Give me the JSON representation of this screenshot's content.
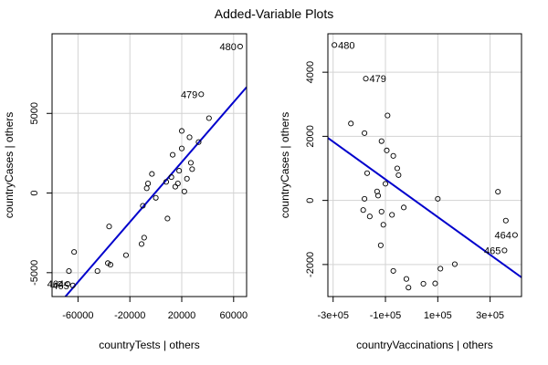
{
  "title": "Added-Variable Plots",
  "chart_data": [
    {
      "type": "scatter",
      "xlabel": "countryTests | others",
      "ylabel": "countryCases  | others",
      "xlim": [
        -80000,
        70000
      ],
      "ylim": [
        -6500,
        10000
      ],
      "x_ticks": [
        -60000,
        -20000,
        20000,
        60000
      ],
      "x_tick_labels": [
        "-60000",
        "-20000",
        "20000",
        "60000"
      ],
      "y_ticks": [
        -5000,
        0,
        5000
      ],
      "y_tick_labels": [
        "-5000",
        "0",
        "5000"
      ],
      "grid": true,
      "points": [
        {
          "x": 65000,
          "y": 9200,
          "label": "480"
        },
        {
          "x": 35000,
          "y": 6200,
          "label": "479"
        },
        {
          "x": -68000,
          "y": -5700,
          "label": "464"
        },
        {
          "x": -64000,
          "y": -5800,
          "label": "465"
        },
        {
          "x": -74000,
          "y": -5700,
          "label": ""
        },
        {
          "x": -67000,
          "y": -4900,
          "label": ""
        },
        {
          "x": -63000,
          "y": -3700,
          "label": ""
        },
        {
          "x": -45000,
          "y": -4900,
          "label": ""
        },
        {
          "x": -37000,
          "y": -4400,
          "label": ""
        },
        {
          "x": -35000,
          "y": -4500,
          "label": ""
        },
        {
          "x": -36000,
          "y": -2100,
          "label": ""
        },
        {
          "x": -23000,
          "y": -3900,
          "label": ""
        },
        {
          "x": -11000,
          "y": -3200,
          "label": ""
        },
        {
          "x": -9000,
          "y": -2800,
          "label": ""
        },
        {
          "x": -10000,
          "y": -800,
          "label": ""
        },
        {
          "x": -7000,
          "y": 300,
          "label": ""
        },
        {
          "x": -6000,
          "y": 600,
          "label": ""
        },
        {
          "x": -3000,
          "y": 1200,
          "label": ""
        },
        {
          "x": 0,
          "y": -300,
          "label": ""
        },
        {
          "x": 8000,
          "y": 700,
          "label": ""
        },
        {
          "x": 13000,
          "y": 2400,
          "label": ""
        },
        {
          "x": 15000,
          "y": 400,
          "label": ""
        },
        {
          "x": 17000,
          "y": 600,
          "label": ""
        },
        {
          "x": 18000,
          "y": 1400,
          "label": ""
        },
        {
          "x": 20000,
          "y": 3900,
          "label": ""
        },
        {
          "x": 20000,
          "y": 2800,
          "label": ""
        },
        {
          "x": 22000,
          "y": 100,
          "label": ""
        },
        {
          "x": 24000,
          "y": 900,
          "label": ""
        },
        {
          "x": 26000,
          "y": 3500,
          "label": ""
        },
        {
          "x": 27000,
          "y": 1900,
          "label": ""
        },
        {
          "x": 28000,
          "y": 1500,
          "label": ""
        },
        {
          "x": 33000,
          "y": 3200,
          "label": ""
        },
        {
          "x": 41000,
          "y": 4700,
          "label": ""
        },
        {
          "x": 9000,
          "y": -1600,
          "label": ""
        },
        {
          "x": 12000,
          "y": 1000,
          "label": ""
        }
      ],
      "fit_line": {
        "x": [
          -80000,
          70000
        ],
        "y": [
          -7470,
          6650
        ]
      },
      "series_color": "#0000cc"
    },
    {
      "type": "scatter",
      "xlabel": "countryVaccinations | others",
      "ylabel": "countryCases  | others",
      "xlim": [
        -320000,
        420000
      ],
      "ylim": [
        -3000,
        5200
      ],
      "x_ticks": [
        -300000,
        -100000,
        100000,
        300000
      ],
      "x_tick_labels": [
        "-3e+05",
        "-1e+05",
        "1e+05",
        "3e+05"
      ],
      "y_ticks": [
        -2000,
        0,
        2000,
        4000
      ],
      "y_tick_labels": [
        "-2000",
        "0",
        "2000",
        "4000"
      ],
      "grid": true,
      "points": [
        {
          "x": -295000,
          "y": 4850,
          "label": "480"
        },
        {
          "x": -175000,
          "y": 3800,
          "label": "479"
        },
        {
          "x": 395000,
          "y": -1080,
          "label": "464"
        },
        {
          "x": 355000,
          "y": -1560,
          "label": "465"
        },
        {
          "x": -232000,
          "y": 2400,
          "label": ""
        },
        {
          "x": -180000,
          "y": 2100,
          "label": ""
        },
        {
          "x": -170000,
          "y": 850,
          "label": ""
        },
        {
          "x": -180000,
          "y": 50,
          "label": ""
        },
        {
          "x": -185000,
          "y": -300,
          "label": ""
        },
        {
          "x": -160000,
          "y": -500,
          "label": ""
        },
        {
          "x": -132000,
          "y": 280,
          "label": ""
        },
        {
          "x": -128000,
          "y": 150,
          "label": ""
        },
        {
          "x": -115000,
          "y": 1850,
          "label": ""
        },
        {
          "x": -115000,
          "y": -350,
          "label": ""
        },
        {
          "x": -108000,
          "y": -760,
          "label": ""
        },
        {
          "x": -118000,
          "y": -1400,
          "label": ""
        },
        {
          "x": -100000,
          "y": 520,
          "label": ""
        },
        {
          "x": -95000,
          "y": 1560,
          "label": ""
        },
        {
          "x": -92000,
          "y": 2650,
          "label": ""
        },
        {
          "x": -75000,
          "y": -450,
          "label": ""
        },
        {
          "x": -70000,
          "y": 1390,
          "label": ""
        },
        {
          "x": -55000,
          "y": 1000,
          "label": ""
        },
        {
          "x": -50000,
          "y": 790,
          "label": ""
        },
        {
          "x": -70000,
          "y": -2200,
          "label": ""
        },
        {
          "x": -30000,
          "y": -220,
          "label": ""
        },
        {
          "x": -20000,
          "y": -2450,
          "label": ""
        },
        {
          "x": -12000,
          "y": -2720,
          "label": ""
        },
        {
          "x": 45000,
          "y": -2600,
          "label": ""
        },
        {
          "x": 90000,
          "y": -2590,
          "label": ""
        },
        {
          "x": 100000,
          "y": 50,
          "label": ""
        },
        {
          "x": 110000,
          "y": -2130,
          "label": ""
        },
        {
          "x": 165000,
          "y": -1990,
          "label": ""
        },
        {
          "x": 330000,
          "y": 270,
          "label": ""
        },
        {
          "x": 360000,
          "y": -630,
          "label": ""
        }
      ],
      "fit_line": {
        "x": [
          -320000,
          420000
        ],
        "y": [
          1950,
          -2400
        ]
      },
      "series_color": "#0000cc"
    }
  ]
}
